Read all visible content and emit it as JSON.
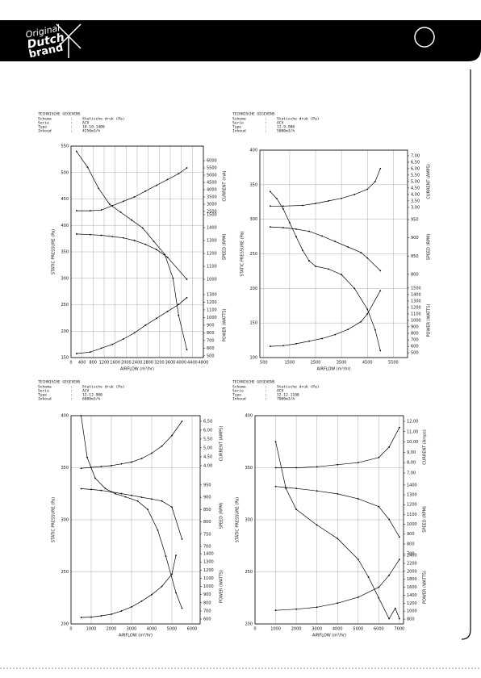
{
  "header": {
    "logo": [
      "Original",
      "Dutch",
      "brand"
    ]
  },
  "chart_data": [
    {
      "type": "line",
      "title": "TECHNISCHE GEGEVENS",
      "rows": [
        [
          "Schema",
          ":",
          "Statische druk (Pa)"
        ],
        [
          "Serie",
          ":",
          "ACV"
        ],
        [
          "Type",
          ":",
          "10-10-1400"
        ],
        [
          "Inhoud",
          ":",
          "4250m3/h"
        ]
      ],
      "x_label": "AIRFLOW (m³/hr)",
      "y_label": "STATIC PRESSURE (Pa)",
      "xlim": [
        0,
        4800
      ],
      "xticks": [
        0,
        400,
        800,
        1200,
        1600,
        2000,
        2400,
        2800,
        3200,
        3600,
        4000,
        4400,
        4800
      ],
      "ylim": [
        150,
        550
      ],
      "yticks": [
        150,
        200,
        250,
        300,
        350,
        400,
        450,
        500,
        550
      ],
      "grid": true,
      "right_axes": [
        {
          "label": "CURRENT (mA)",
          "lim": [
            2500,
            6000
          ],
          "ticks": [
            2500,
            3000,
            3500,
            4000,
            4500,
            5000,
            5500,
            6000
          ]
        },
        {
          "label": "SPEED (RPM)",
          "lim": [
            1000,
            1500
          ],
          "ticks": [
            1000,
            1100,
            1200,
            1300,
            1400,
            1500
          ]
        },
        {
          "label": "POWER (WATTS)",
          "lim": [
            500,
            1300
          ],
          "ticks": [
            500,
            600,
            700,
            800,
            900,
            1000,
            1100,
            1200,
            1300
          ]
        }
      ],
      "series": [
        {
          "axis": "y",
          "color": "#000000",
          "x": [
            200,
            600,
            1000,
            1400,
            1800,
            2200,
            2600,
            3000,
            3400,
            3700,
            3900,
            4200
          ],
          "values": [
            540,
            510,
            470,
            440,
            425,
            410,
            395,
            370,
            345,
            300,
            230,
            165
          ]
        },
        {
          "axis": 0,
          "color": "#000000",
          "x": [
            200,
            700,
            1100,
            1500,
            1900,
            2300,
            2700,
            3100,
            3500,
            3900,
            4200
          ],
          "values": [
            2550,
            2550,
            2600,
            2900,
            3200,
            3500,
            3900,
            4300,
            4700,
            5100,
            5500
          ]
        },
        {
          "axis": 1,
          "color": "#000000",
          "x": [
            200,
            700,
            1100,
            1500,
            1900,
            2300,
            2700,
            3100,
            3500,
            4200
          ],
          "values": [
            1350,
            1345,
            1340,
            1330,
            1320,
            1300,
            1270,
            1230,
            1170,
            1000
          ]
        },
        {
          "axis": 2,
          "color": "#000000",
          "x": [
            200,
            700,
            1100,
            1500,
            1900,
            2300,
            2700,
            3100,
            3500,
            3900,
            4200
          ],
          "values": [
            530,
            550,
            600,
            650,
            720,
            800,
            900,
            990,
            1080,
            1170,
            1260
          ]
        }
      ]
    },
    {
      "type": "line",
      "title": "TECHNISCHE GEGEVENS",
      "rows": [
        [
          "Schema",
          ":",
          "Statische druk (Pa)"
        ],
        [
          "Serie",
          ":",
          "ACV"
        ],
        [
          "Type",
          ":",
          "12-9-900"
        ],
        [
          "Inhoud",
          ":",
          "5000m3/h"
        ]
      ],
      "x_label": "AIRFLOW (m³/hr)",
      "y_label": "STATIC PRESSURE (Pa)",
      "xlim": [
        350,
        6050
      ],
      "xticks": [
        500,
        1500,
        2500,
        3500,
        4500,
        5500
      ],
      "ylim": [
        100,
        400
      ],
      "yticks": [
        100,
        150,
        200,
        250,
        300,
        350,
        400
      ],
      "grid": true,
      "right_axes": [
        {
          "label": "CURRENT (AMPS)",
          "lim": [
            3,
            7
          ],
          "ticks": [
            {
              "value": 3,
              "label": "3,00"
            },
            {
              "value": 3.5,
              "label": "3,50"
            },
            {
              "value": 4,
              "label": "4,00"
            },
            {
              "value": 4.5,
              "label": "4,50"
            },
            {
              "value": 5,
              "label": "5,00"
            },
            {
              "value": 5.5,
              "label": "5,50"
            },
            {
              "value": 6,
              "label": "6,00"
            },
            {
              "value": 6.5,
              "label": "6,50"
            },
            {
              "value": 7,
              "label": "7,00"
            }
          ]
        },
        {
          "label": "SPEED (RPM)",
          "lim": [
            800,
            950
          ],
          "ticks": [
            800,
            850,
            900,
            950
          ]
        },
        {
          "label": "POWER (WATTS)",
          "lim": [
            500,
            1500
          ],
          "ticks": [
            500,
            600,
            700,
            800,
            900,
            1000,
            1100,
            1200,
            1300,
            1400,
            1500
          ]
        }
      ],
      "series": [
        {
          "axis": "y",
          "color": "#000000",
          "x": [
            750,
            1000,
            1250,
            1500,
            1750,
            2000,
            2250,
            2500,
            3000,
            3500,
            4000,
            4500,
            4800,
            5000
          ],
          "values": [
            340,
            330,
            315,
            295,
            275,
            255,
            240,
            232,
            228,
            220,
            200,
            170,
            140,
            110
          ]
        },
        {
          "axis": 0,
          "color": "#000000",
          "x": [
            750,
            1250,
            2000,
            2500,
            3000,
            3500,
            4000,
            4500,
            4800,
            5000
          ],
          "values": [
            3.1,
            3.1,
            3.15,
            3.3,
            3.5,
            3.7,
            4.0,
            4.4,
            5.0,
            6.0
          ]
        },
        {
          "axis": 1,
          "color": "#000000",
          "x": [
            750,
            1250,
            1750,
            2250,
            2750,
            3250,
            3750,
            4250,
            4500,
            5000
          ],
          "values": [
            930,
            928,
            924,
            918,
            905,
            890,
            875,
            860,
            845,
            810
          ]
        },
        {
          "axis": 2,
          "color": "#000000",
          "x": [
            750,
            1250,
            1750,
            2250,
            2750,
            3250,
            3750,
            4250,
            4500,
            5000
          ],
          "values": [
            600,
            610,
            640,
            680,
            720,
            780,
            860,
            980,
            1100,
            1460
          ]
        }
      ]
    },
    {
      "type": "line",
      "title": "TECHNISCHE GEGEVENS",
      "rows": [
        [
          "Schema",
          ":",
          "Statische druk (Pa)"
        ],
        [
          "Serie",
          ":",
          "ACV"
        ],
        [
          "Type",
          ":",
          "12-12-900"
        ],
        [
          "Inhoud",
          ":",
          "6000m3/h"
        ]
      ],
      "x_label": "AIRFLOW (m³/hr)",
      "y_label": "STATIC PRESSURE (Pa)",
      "xlim": [
        0,
        6400
      ],
      "xticks": [
        0,
        1000,
        2000,
        3000,
        4000,
        5000,
        6000
      ],
      "ylim": [
        200,
        400
      ],
      "yticks": [
        200,
        250,
        300,
        350,
        400
      ],
      "grid": true,
      "right_axes": [
        {
          "label": "CURRENT (AMPS)",
          "lim": [
            4,
            6.5
          ],
          "ticks": [
            {
              "value": 4,
              "label": "4,00"
            },
            {
              "value": 4.5,
              "label": "4,50"
            },
            {
              "value": 5,
              "label": "5,00"
            },
            {
              "value": 5.5,
              "label": "5,50"
            },
            {
              "value": 6,
              "label": "6,00"
            },
            {
              "value": 6.5,
              "label": "6,50"
            }
          ]
        },
        {
          "label": "SPEED (RPM)",
          "lim": [
            700,
            950
          ],
          "ticks": [
            700,
            750,
            800,
            850,
            900,
            950
          ]
        },
        {
          "label": "POWER (WATTS)",
          "lim": [
            600,
            1400
          ],
          "ticks": [
            600,
            700,
            800,
            900,
            1000,
            1100,
            1200,
            1300,
            1400
          ]
        }
      ],
      "series": [
        {
          "axis": "y",
          "color": "#000000",
          "x": [
            500,
            800,
            1200,
            1700,
            2200,
            2700,
            3300,
            3800,
            4300,
            4700,
            5200,
            5500
          ],
          "values": [
            400,
            360,
            340,
            330,
            325,
            322,
            318,
            310,
            290,
            265,
            230,
            215
          ]
        },
        {
          "axis": 0,
          "color": "#000000",
          "x": [
            500,
            1000,
            1500,
            2000,
            2500,
            3000,
            3500,
            4000,
            4500,
            5000,
            5500
          ],
          "values": [
            3.85,
            3.9,
            3.95,
            4.0,
            4.1,
            4.2,
            4.4,
            4.7,
            5.1,
            5.7,
            6.5
          ]
        },
        {
          "axis": 1,
          "color": "#000000",
          "x": [
            500,
            1000,
            1500,
            2000,
            2500,
            3000,
            3500,
            4000,
            4500,
            5000,
            5500
          ],
          "values": [
            935,
            932,
            928,
            922,
            915,
            908,
            900,
            893,
            885,
            860,
            730
          ]
        },
        {
          "axis": 2,
          "color": "#000000",
          "x": [
            500,
            1000,
            1500,
            2000,
            2500,
            3000,
            3500,
            4000,
            4500,
            5000,
            5200
          ],
          "values": [
            620,
            625,
            640,
            660,
            700,
            750,
            820,
            900,
            1000,
            1150,
            1380
          ]
        }
      ]
    },
    {
      "type": "line",
      "title": "TECHNISCHE GEGEVENS",
      "rows": [
        [
          "Schema",
          ":",
          "Statische druk (Pa)"
        ],
        [
          "Serie",
          ":",
          "ACV"
        ],
        [
          "Type",
          ":",
          "12-12-1100"
        ],
        [
          "Inhoud",
          ":",
          "7000m3/h"
        ]
      ],
      "x_label": "AIRFLOW (m³/hr)",
      "y_label": "STATIC PRESSURE (Pa)",
      "xlim": [
        0,
        7200
      ],
      "xticks": [
        0,
        1000,
        2000,
        3000,
        4000,
        5000,
        6000,
        7000
      ],
      "ylim": [
        200,
        400
      ],
      "yticks": [
        200,
        250,
        300,
        350,
        400
      ],
      "grid": true,
      "right_axes": [
        {
          "label": "CURRENT (Amps)",
          "lim": [
            7,
            12
          ],
          "ticks": [
            {
              "value": 7,
              "label": "7,00"
            },
            {
              "value": 8,
              "label": "8,00"
            },
            {
              "value": 9,
              "label": "9,00"
            },
            {
              "value": 10,
              "label": "10,00"
            },
            {
              "value": 11,
              "label": "11,00"
            },
            {
              "value": 12,
              "label": "12,00"
            }
          ]
        },
        {
          "label": "SPEED (RPM)",
          "lim": [
            700,
            1400
          ],
          "ticks": [
            700,
            800,
            900,
            1000,
            1100,
            1200,
            1300,
            1400
          ]
        },
        {
          "label": "POWER (WATTS)",
          "lim": [
            800,
            2400
          ],
          "ticks": [
            800,
            1000,
            1200,
            1400,
            1600,
            1800,
            2000,
            2200,
            2400
          ]
        }
      ],
      "series": [
        {
          "axis": "y",
          "color": "#000000",
          "x": [
            1000,
            1500,
            2000,
            3000,
            4000,
            5000,
            5500,
            6000,
            6500,
            6800,
            7000
          ],
          "values": [
            375,
            330,
            310,
            295,
            282,
            262,
            245,
            225,
            205,
            215,
            205
          ]
        },
        {
          "axis": 0,
          "color": "#000000",
          "x": [
            1000,
            2000,
            3000,
            4000,
            5000,
            6000,
            6500,
            7000
          ],
          "values": [
            7.5,
            7.5,
            7.6,
            7.8,
            8.0,
            8.5,
            9.5,
            11.4
          ]
        },
        {
          "axis": 1,
          "color": "#000000",
          "x": [
            1000,
            1500,
            2000,
            3000,
            4000,
            5000,
            6000,
            6500,
            7000
          ],
          "values": [
            1385,
            1375,
            1365,
            1340,
            1310,
            1260,
            1180,
            1050,
            870
          ]
        },
        {
          "axis": 2,
          "color": "#000000",
          "x": [
            1000,
            2000,
            3000,
            4000,
            5000,
            6000,
            6500,
            7000
          ],
          "values": [
            1020,
            1050,
            1100,
            1200,
            1350,
            1600,
            1900,
            2300
          ]
        }
      ]
    }
  ]
}
